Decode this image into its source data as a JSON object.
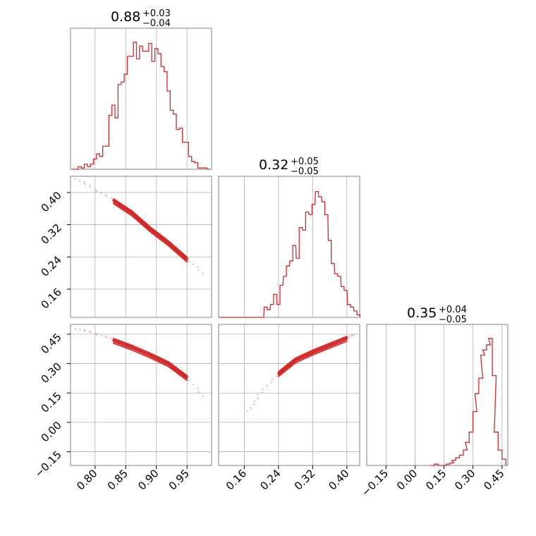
{
  "colors": {
    "accent": "#d62728",
    "grid": "#b0b0b0",
    "frame": "#808080"
  },
  "chart_data": {
    "type": "corner",
    "grid": true,
    "parameters": [
      {
        "title": {
          "median": "0.88",
          "plus": "+0.03",
          "minus": "−0.04"
        },
        "axis_range": [
          0.76,
          0.99
        ],
        "ticks": [
          "0.80",
          "0.85",
          "0.90",
          "0.95"
        ],
        "hist_x": [
          0.765,
          0.77,
          0.775,
          0.78,
          0.785,
          0.79,
          0.795,
          0.8,
          0.805,
          0.81,
          0.815,
          0.82,
          0.825,
          0.83,
          0.835,
          0.84,
          0.845,
          0.85,
          0.855,
          0.86,
          0.865,
          0.87,
          0.875,
          0.88,
          0.885,
          0.89,
          0.895,
          0.9,
          0.905,
          0.91,
          0.915,
          0.92,
          0.925,
          0.93,
          0.935,
          0.94,
          0.945,
          0.95,
          0.955,
          0.96,
          0.965,
          0.97,
          0.975,
          0.98,
          0.985
        ],
        "hist_y": [
          0.0,
          0.0,
          0.02,
          0.01,
          0.04,
          0.02,
          0.04,
          0.08,
          0.12,
          0.1,
          0.18,
          0.18,
          0.42,
          0.5,
          0.4,
          0.66,
          0.68,
          0.74,
          0.88,
          0.88,
          0.99,
          0.86,
          0.96,
          0.92,
          0.92,
          0.98,
          0.84,
          0.94,
          0.9,
          0.8,
          0.76,
          0.61,
          0.46,
          0.43,
          0.31,
          0.32,
          0.21,
          0.21,
          0.1,
          0.06,
          0.05,
          0.01,
          0.01,
          0.01,
          0.0
        ]
      },
      {
        "title": {
          "median": "0.32",
          "plus": "+0.05",
          "minus": "−0.05"
        },
        "axis_range": [
          0.1,
          0.43
        ],
        "ticks": [
          "0.16",
          "0.24",
          "0.32",
          "0.40"
        ],
        "hist_x": [
          0.105,
          0.112,
          0.12,
          0.127,
          0.135,
          0.142,
          0.15,
          0.157,
          0.165,
          0.172,
          0.18,
          0.187,
          0.195,
          0.202,
          0.21,
          0.217,
          0.225,
          0.232,
          0.24,
          0.247,
          0.255,
          0.262,
          0.27,
          0.277,
          0.285,
          0.292,
          0.3,
          0.307,
          0.315,
          0.322,
          0.33,
          0.337,
          0.345,
          0.352,
          0.36,
          0.367,
          0.375,
          0.382,
          0.39,
          0.397,
          0.405,
          0.412,
          0.42,
          0.427
        ],
        "hist_y": [
          0.0,
          0.0,
          0.0,
          0.0,
          0.0,
          0.0,
          0.0,
          0.0,
          0.0,
          0.0,
          0.0,
          0.0,
          0.0,
          0.0,
          0.08,
          0.06,
          0.1,
          0.18,
          0.1,
          0.25,
          0.32,
          0.4,
          0.44,
          0.56,
          0.46,
          0.7,
          0.68,
          0.82,
          0.8,
          0.88,
          0.98,
          0.94,
          0.9,
          0.8,
          0.6,
          0.42,
          0.34,
          0.32,
          0.24,
          0.21,
          0.1,
          0.08,
          0.05,
          0.02
        ]
      },
      {
        "title": {
          "median": "0.35",
          "plus": "+0.04",
          "minus": "−0.05"
        },
        "axis_range": [
          -0.25,
          0.48
        ],
        "ticks": [
          "−0.15",
          "0.00",
          "0.15",
          "0.30",
          "0.45"
        ],
        "hist_x": [
          0.09,
          0.11,
          0.13,
          0.15,
          0.17,
          0.19,
          0.2,
          0.22,
          0.24,
          0.26,
          0.27,
          0.29,
          0.31,
          0.32,
          0.34,
          0.35,
          0.36,
          0.38,
          0.39,
          0.41,
          0.42,
          0.44,
          0.46
        ],
        "hist_y": [
          0.0,
          0.01,
          0.0,
          0.0,
          0.01,
          0.02,
          0.04,
          0.06,
          0.08,
          0.12,
          0.18,
          0.26,
          0.42,
          0.56,
          0.68,
          0.86,
          0.9,
          0.94,
          0.99,
          0.7,
          0.26,
          0.12,
          0.05
        ]
      }
    ],
    "pair_axes": {
      "y_row1": {
        "range": [
          0.09,
          0.44
        ],
        "ticks": [
          "0.16",
          "0.24",
          "0.32",
          "0.40"
        ]
      },
      "y_row2": {
        "range": [
          -0.22,
          0.5
        ],
        "ticks": [
          "−0.15",
          "0.00",
          "0.15",
          "0.30",
          "0.45"
        ]
      }
    },
    "pairs": [
      {
        "row": 1,
        "col": 0,
        "curve": [
          [
            0.77,
            0.43
          ],
          [
            0.8,
            0.405
          ],
          [
            0.83,
            0.38
          ],
          [
            0.86,
            0.35
          ],
          [
            0.89,
            0.31
          ],
          [
            0.92,
            0.275
          ],
          [
            0.95,
            0.235
          ],
          [
            0.98,
            0.19
          ]
        ]
      },
      {
        "row": 2,
        "col": 0,
        "curve": [
          [
            0.77,
            0.47
          ],
          [
            0.8,
            0.45
          ],
          [
            0.83,
            0.42
          ],
          [
            0.86,
            0.385
          ],
          [
            0.89,
            0.345
          ],
          [
            0.92,
            0.3
          ],
          [
            0.95,
            0.23
          ],
          [
            0.98,
            0.11
          ]
        ]
      },
      {
        "row": 2,
        "col": 1,
        "curve": [
          [
            0.17,
            0.05
          ],
          [
            0.2,
            0.15
          ],
          [
            0.24,
            0.25
          ],
          [
            0.28,
            0.32
          ],
          [
            0.32,
            0.36
          ],
          [
            0.36,
            0.395
          ],
          [
            0.4,
            0.43
          ],
          [
            0.42,
            0.45
          ]
        ]
      }
    ]
  }
}
